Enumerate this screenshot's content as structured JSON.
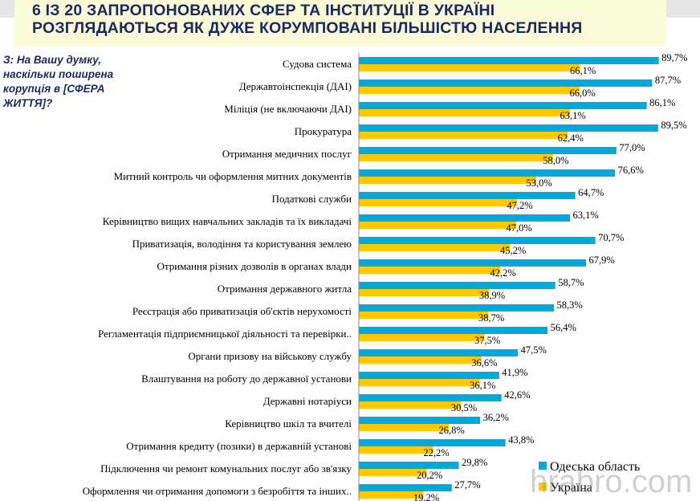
{
  "title": {
    "line1": "6 ІЗ 20 ЗАПРОПОНОВАНИХ СФЕР ТА ІНСТИТУЦІЇ В УКРАЇНІ",
    "line2": "РОЗГЛЯДАЮТЬСЯ ЯК ДУЖЕ КОРУМПОВАНІ БІЛЬШІСТЮ НАСЕЛЕННЯ"
  },
  "question": "З: На Вашу думку, наскільки поширена корупція в [СФЕРА ЖИТТЯ]?",
  "watermark": "hrabro.com",
  "chart_data": {
    "type": "bar",
    "orientation": "horizontal",
    "categories": [
      "Судова система",
      "Державтоінспекція (ДАІ)",
      "Міліція (не включаючи ДАІ)",
      "Прокуратура",
      "Отримання медичних послуг",
      "Митний контроль чи оформлення митних документів",
      "Податкові служби",
      "Керівництво вищих навчальних закладів та їх викладачі",
      "Приватизація, володіння та користування землею",
      "Отримання різних дозволів в органах влади",
      "Отримання державного житла",
      "Реєстрація або приватизація об'єктів нерухомості",
      "Регламентація підприємницької діяльності та перевірки..",
      "Органи призову на військову службу",
      "Влаштування на роботу до державної установи",
      "Державні нотаріуси",
      "Керівництво шкіл та вчителі",
      "Отримання кредиту (позики) в державній установі",
      "Підключення чи ремонт комунальних послуг або зв'язку",
      "Оформлення чи отримання допомоги з безробіття та інших.."
    ],
    "series": [
      {
        "name": "Одеська область",
        "color": "#00a9d9",
        "values": [
          89.7,
          87.7,
          86.1,
          89.5,
          77.0,
          76.6,
          64.7,
          63.1,
          70.7,
          67.9,
          58.7,
          58.3,
          56.4,
          47.5,
          41.9,
          42.6,
          36.2,
          43.8,
          29.8,
          27.7
        ],
        "labels": [
          "89,7%",
          "87,7%",
          "86,1%",
          "89,5%",
          "77,0%",
          "76,6%",
          "64,7%",
          "63,1%",
          "70,7%",
          "67,9%",
          "58,7%",
          "58,3%",
          "56,4%",
          "47,5%",
          "41,9%",
          "42,6%",
          "36,2%",
          "43,8%",
          "29,8%",
          "27,7%"
        ]
      },
      {
        "name": "Україна",
        "color": "#ffc800",
        "values": [
          66.1,
          66.0,
          63.1,
          62.4,
          58.0,
          53.0,
          47.2,
          47.0,
          45.2,
          42.2,
          38.9,
          38.7,
          37.5,
          36.6,
          36.1,
          30.5,
          26.8,
          22.2,
          20.2,
          19.2
        ],
        "labels": [
          "66,1%",
          "66,0%",
          "63,1%",
          "62,4%",
          "58,0%",
          "53,0%",
          "47,2%",
          "47,0%",
          "45,2%",
          "42,2%",
          "38,9%",
          "38,7%",
          "37,5%",
          "36,6%",
          "36,1%",
          "30,5%",
          "26,8%",
          "22,2%",
          "20,2%",
          "19,2%"
        ]
      }
    ],
    "xlim": [
      0,
      100
    ],
    "grid": false,
    "legend": "bottom-right"
  }
}
